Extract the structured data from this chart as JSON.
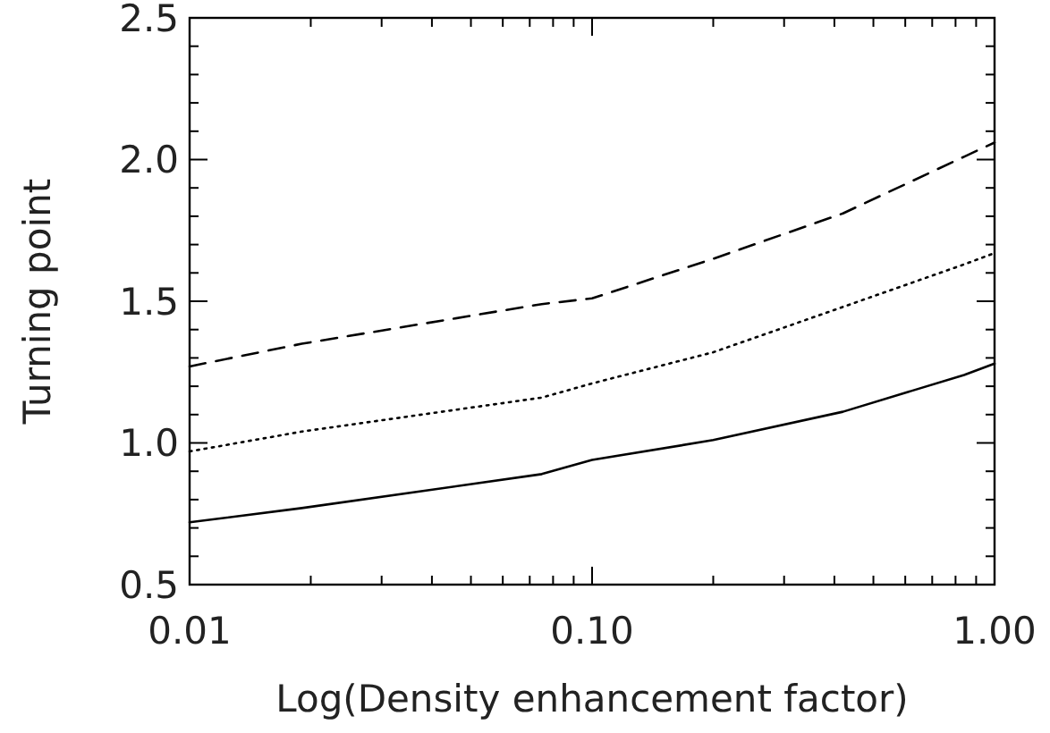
{
  "chart_data": {
    "type": "line",
    "xlabel": "Log(Density enhancement factor)",
    "ylabel": "Turning point",
    "log": "x",
    "xlim": [
      0.01,
      1
    ],
    "ylim": [
      0.5,
      2.5
    ],
    "xticks": [
      {
        "value": 0.01,
        "label": "0.01"
      },
      {
        "value": 0.02,
        "label": null
      },
      {
        "value": 0.03,
        "label": null
      },
      {
        "value": 0.04,
        "label": null
      },
      {
        "value": 0.05,
        "label": null
      },
      {
        "value": 0.06,
        "label": null
      },
      {
        "value": 0.07,
        "label": null
      },
      {
        "value": 0.08,
        "label": null
      },
      {
        "value": 0.09,
        "label": null
      },
      {
        "value": 0.1,
        "label": "0.10"
      },
      {
        "value": 0.2,
        "label": null
      },
      {
        "value": 0.3,
        "label": null
      },
      {
        "value": 0.4,
        "label": null
      },
      {
        "value": 0.5,
        "label": null
      },
      {
        "value": 0.6,
        "label": null
      },
      {
        "value": 0.7,
        "label": null
      },
      {
        "value": 0.8,
        "label": null
      },
      {
        "value": 0.9,
        "label": null
      },
      {
        "value": 1,
        "label": "1.00"
      }
    ],
    "yticks": [
      0.5,
      {
        "value": 0.6,
        "label": null
      },
      {
        "value": 0.7,
        "label": null
      },
      {
        "value": 0.8,
        "label": null
      },
      {
        "value": 0.9,
        "label": null
      },
      {
        "value": 1,
        "label": "1.0"
      },
      {
        "value": 1.1,
        "label": null
      },
      {
        "value": 1.2,
        "label": null
      },
      {
        "value": 1.3,
        "label": null
      },
      {
        "value": 1.4,
        "label": null
      },
      1.5,
      {
        "value": 1.6,
        "label": null
      },
      {
        "value": 1.7,
        "label": null
      },
      {
        "value": 1.8,
        "label": null
      },
      {
        "value": 1.9,
        "label": null
      },
      {
        "value": 2,
        "label": "2.0"
      },
      {
        "value": 2.1,
        "label": null
      },
      {
        "value": 2.2,
        "label": null
      },
      {
        "value": 2.3,
        "label": null
      },
      {
        "value": 2.4,
        "label": null
      },
      2.5
    ],
    "x": [
      0.01,
      0.019,
      0.075,
      0.1,
      0.2,
      0.42,
      0.84,
      1
    ],
    "series": [
      {
        "color": "#000000",
        "line_style": "solid",
        "values": [
          0.72,
          0.77,
          0.89,
          0.94,
          1.01,
          1.11,
          1.24,
          1.28
        ]
      },
      {
        "color": "#000000",
        "line_style": "dotted",
        "values": [
          0.97,
          1.04,
          1.16,
          1.21,
          1.32,
          1.48,
          1.63,
          1.67
        ]
      },
      {
        "color": "#000000",
        "line_style": "dashed",
        "values": [
          1.27,
          1.35,
          1.49,
          1.51,
          1.65,
          1.81,
          2.01,
          2.06
        ]
      }
    ]
  }
}
